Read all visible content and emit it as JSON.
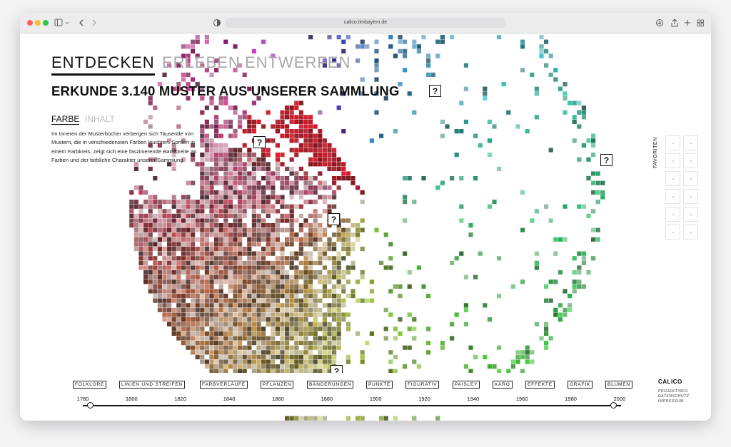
{
  "browser": {
    "url": "calico.timbayern.de"
  },
  "nav": [
    "ENTDECKEN",
    "ERLEBEN",
    "ENTWERFEN"
  ],
  "heading": "ERKUNDE 3.140 MUSTER AUS UNSERER SAMMLUNG",
  "tabs": [
    "FARBE",
    "INHALT"
  ],
  "description": "Im Inneren der Musterbücher verbergen sich Tausende von Mustern, die in verschiedensten Farben leuchten. Sortiert in einem Farbkreis, zeigt sich eine faszinierende Bandbreite an Farben und der farbliche Charakter unserer Sammlung.",
  "marker_label": "?",
  "favorites": {
    "title": "FAVORITEN"
  },
  "categories": [
    "FOLKLORE",
    "LINIEN UND STREIFEN",
    "FARBVERLÄUFE",
    "PFLANZEN",
    "BÄNDERUNGEN",
    "PUNKTE",
    "FIGURATIV",
    "PAISLEY",
    "KARO",
    "EFFEKTE",
    "GRAFIK",
    "BLUMEN"
  ],
  "timeline": {
    "years": [
      1780,
      1800,
      1820,
      1840,
      1860,
      1880,
      1900,
      1920,
      1940,
      1960,
      1980,
      2000
    ]
  },
  "footer": {
    "brand": "CALICO",
    "links": [
      "PROJEKTINFO",
      "DATENSCHUTZ",
      "IMPRESSUM"
    ]
  }
}
